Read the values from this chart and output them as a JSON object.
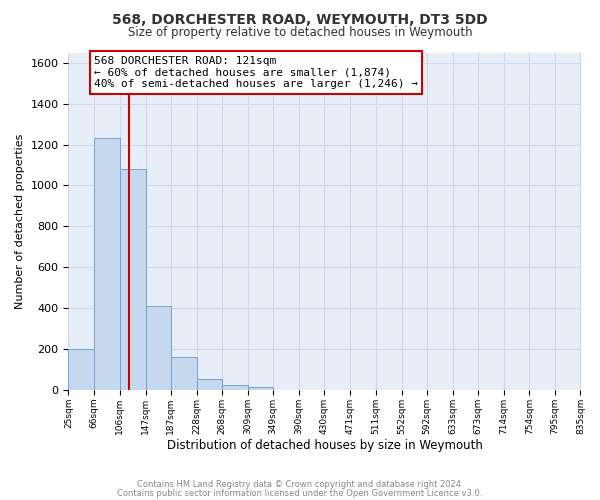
{
  "title": "568, DORCHESTER ROAD, WEYMOUTH, DT3 5DD",
  "subtitle": "Size of property relative to detached houses in Weymouth",
  "xlabel": "Distribution of detached houses by size in Weymouth",
  "ylabel": "Number of detached properties",
  "bin_edges": [
    25,
    66,
    106,
    147,
    187,
    228,
    268,
    309,
    349,
    390,
    430,
    471,
    511,
    552,
    592,
    633,
    673,
    714,
    754,
    795,
    835
  ],
  "bar_heights": [
    200,
    1230,
    1080,
    410,
    160,
    55,
    25,
    15,
    0,
    0,
    0,
    0,
    0,
    0,
    0,
    0,
    0,
    0,
    0,
    0
  ],
  "bar_color": "#c5d8ee",
  "bar_edge_color": "#6ea6d0",
  "grid_color": "#d0d8e8",
  "plot_bg_color": "#e8eef8",
  "figure_bg_color": "#ffffff",
  "vline_x": 121,
  "vline_color": "#cc0000",
  "ylim": [
    0,
    1650
  ],
  "yticks": [
    0,
    200,
    400,
    600,
    800,
    1000,
    1200,
    1400,
    1600
  ],
  "annotation_line1": "568 DORCHESTER ROAD: 121sqm",
  "annotation_line2": "← 60% of detached houses are smaller (1,874)",
  "annotation_line3": "40% of semi-detached houses are larger (1,246) →",
  "footer_line1": "Contains HM Land Registry data © Crown copyright and database right 2024.",
  "footer_line2": "Contains public sector information licensed under the Open Government Licence v3.0."
}
